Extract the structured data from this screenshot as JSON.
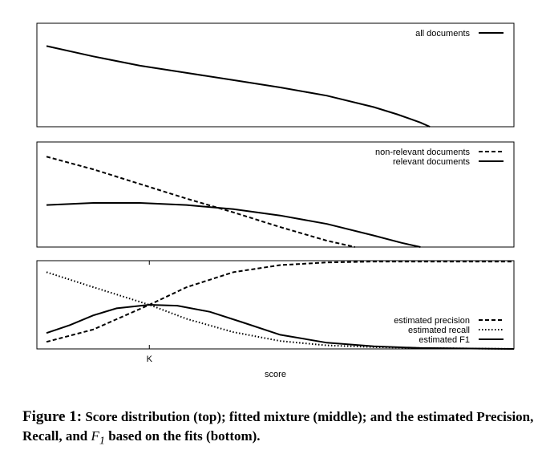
{
  "chart_data": [
    {
      "type": "line",
      "panel": "top",
      "xlim": [
        0,
        1
      ],
      "ylim": [
        0,
        1
      ],
      "legend": "top-right",
      "series": [
        {
          "name": "all documents",
          "style": "solid",
          "x": [
            0.0,
            0.1,
            0.2,
            0.3,
            0.4,
            0.5,
            0.6,
            0.7,
            0.75,
            0.8,
            0.82
          ],
          "y": [
            0.78,
            0.68,
            0.59,
            0.52,
            0.45,
            0.38,
            0.3,
            0.19,
            0.12,
            0.04,
            0.0
          ]
        }
      ]
    },
    {
      "type": "line",
      "panel": "middle",
      "xlim": [
        0,
        1
      ],
      "ylim": [
        0,
        1
      ],
      "legend": "top-right",
      "series": [
        {
          "name": "non-relevant documents",
          "style": "dashed",
          "x": [
            0.0,
            0.1,
            0.2,
            0.3,
            0.4,
            0.5,
            0.6,
            0.66
          ],
          "y": [
            0.86,
            0.74,
            0.6,
            0.46,
            0.33,
            0.19,
            0.06,
            0.0
          ]
        },
        {
          "name": "relevant documents",
          "style": "solid",
          "x": [
            0.0,
            0.1,
            0.2,
            0.3,
            0.4,
            0.5,
            0.6,
            0.7,
            0.76,
            0.8
          ],
          "y": [
            0.4,
            0.42,
            0.42,
            0.4,
            0.36,
            0.3,
            0.22,
            0.11,
            0.04,
            0.0
          ]
        }
      ]
    },
    {
      "type": "line",
      "panel": "bottom",
      "xlim": [
        0,
        1
      ],
      "ylim": [
        0,
        1
      ],
      "legend": "bottom-right",
      "xticks": [
        {
          "value": 0.22,
          "label": "K"
        }
      ],
      "xlabel": "score",
      "series": [
        {
          "name": "estimated precision",
          "style": "dashed",
          "x": [
            0.0,
            0.1,
            0.22,
            0.3,
            0.4,
            0.5,
            0.6,
            0.7,
            0.8,
            0.9,
            1.0
          ],
          "y": [
            0.08,
            0.22,
            0.5,
            0.7,
            0.87,
            0.95,
            0.98,
            0.99,
            0.99,
            0.99,
            0.99
          ]
        },
        {
          "name": "estimated recall",
          "style": "dotted",
          "x": [
            0.0,
            0.1,
            0.22,
            0.3,
            0.4,
            0.5,
            0.6,
            0.7,
            0.8,
            1.0
          ],
          "y": [
            0.87,
            0.7,
            0.5,
            0.34,
            0.19,
            0.09,
            0.04,
            0.02,
            0.01,
            0.0
          ]
        },
        {
          "name": "estimated F1",
          "style": "solid",
          "x": [
            0.0,
            0.05,
            0.1,
            0.15,
            0.22,
            0.28,
            0.35,
            0.42,
            0.5,
            0.6,
            0.7,
            0.8,
            1.0
          ],
          "y": [
            0.18,
            0.27,
            0.38,
            0.46,
            0.5,
            0.49,
            0.42,
            0.3,
            0.16,
            0.07,
            0.03,
            0.01,
            0.0
          ]
        }
      ]
    }
  ],
  "caption": {
    "lead": "Figure 1:",
    "text_before_math": " Score distribution (top); fitted mixture (middle); and the estimated Precision, Recall, and ",
    "math": "F",
    "math_sub": "1",
    "text_after_math": " based on the fits (bottom)."
  }
}
